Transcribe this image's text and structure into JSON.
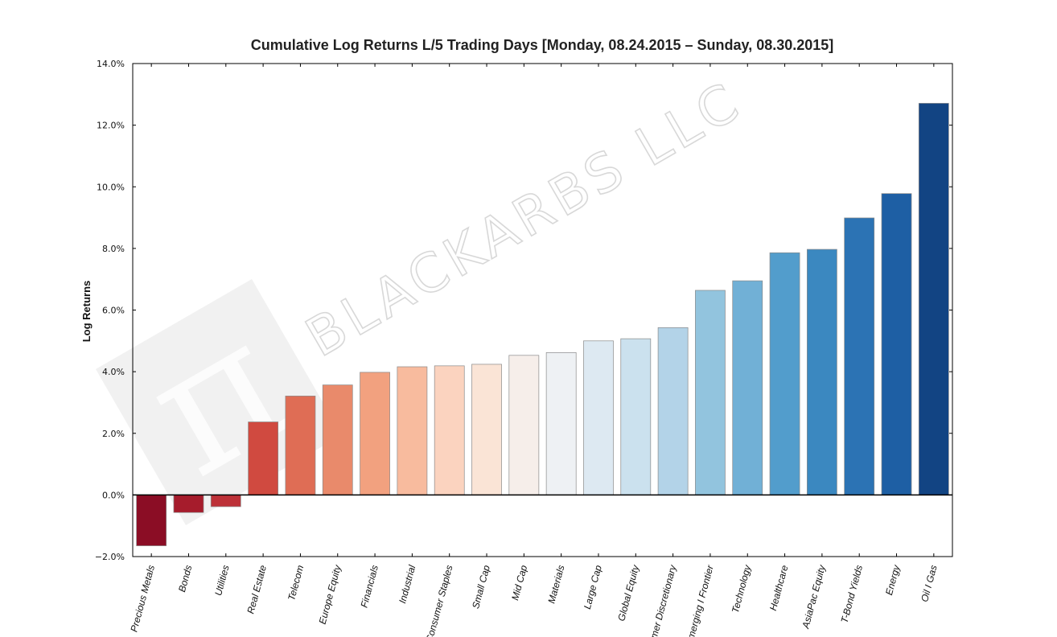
{
  "watermark": {
    "text": "BLACKARBS LLC",
    "logo_glyph": "π"
  },
  "chart_data": {
    "type": "bar",
    "title": "Cumulative Log Returns L/5 Trading Days  [Monday, 08.24.2015 – Sunday, 08.30.2015]",
    "xlabel": "",
    "ylabel": "Log Returns",
    "ylim": [
      -2.0,
      14.0
    ],
    "yticks": [
      -2.0,
      0.0,
      2.0,
      4.0,
      6.0,
      8.0,
      10.0,
      12.0,
      14.0
    ],
    "ytick_labels": [
      "−2.0%",
      "0.0%",
      "2.0%",
      "4.0%",
      "6.0%",
      "8.0%",
      "10.0%",
      "12.0%",
      "14.0%"
    ],
    "unit": "%",
    "categories": [
      "Precious Metals",
      "Bonds",
      "Utilities",
      "Real Estate",
      "Telecom",
      "Europe Equity",
      "Financials",
      "Industrial",
      "Consumer Staples",
      "Small Cap",
      "Mid Cap",
      "Materials",
      "Large Cap",
      "Global Equity",
      "Consumer Discretionary",
      "Emerging I Frontier",
      "Technology",
      "Healthcare",
      "AsiaPac Equity",
      "T-Bond Yields",
      "Energy",
      "Oil I Gas"
    ],
    "values": [
      -1.65,
      -0.57,
      -0.38,
      2.37,
      3.21,
      3.57,
      3.98,
      4.16,
      4.19,
      4.24,
      4.53,
      4.62,
      5.0,
      5.07,
      5.43,
      6.64,
      6.95,
      7.86,
      7.97,
      8.99,
      9.78,
      12.71
    ],
    "colors": [
      "#8b0d25",
      "#a61c2c",
      "#bd3138",
      "#d04a40",
      "#df6d55",
      "#e98a6b",
      "#f2a17f",
      "#f8bb9e",
      "#fbd3bf",
      "#fae4d6",
      "#f6eeea",
      "#eef1f4",
      "#dde9f2",
      "#cbe1ee",
      "#b3d3e8",
      "#92c4de",
      "#71b0d6",
      "#529dcc",
      "#3b88c0",
      "#2c73b4",
      "#1e5fa4",
      "#124483"
    ],
    "grid": false,
    "legend": "none"
  }
}
